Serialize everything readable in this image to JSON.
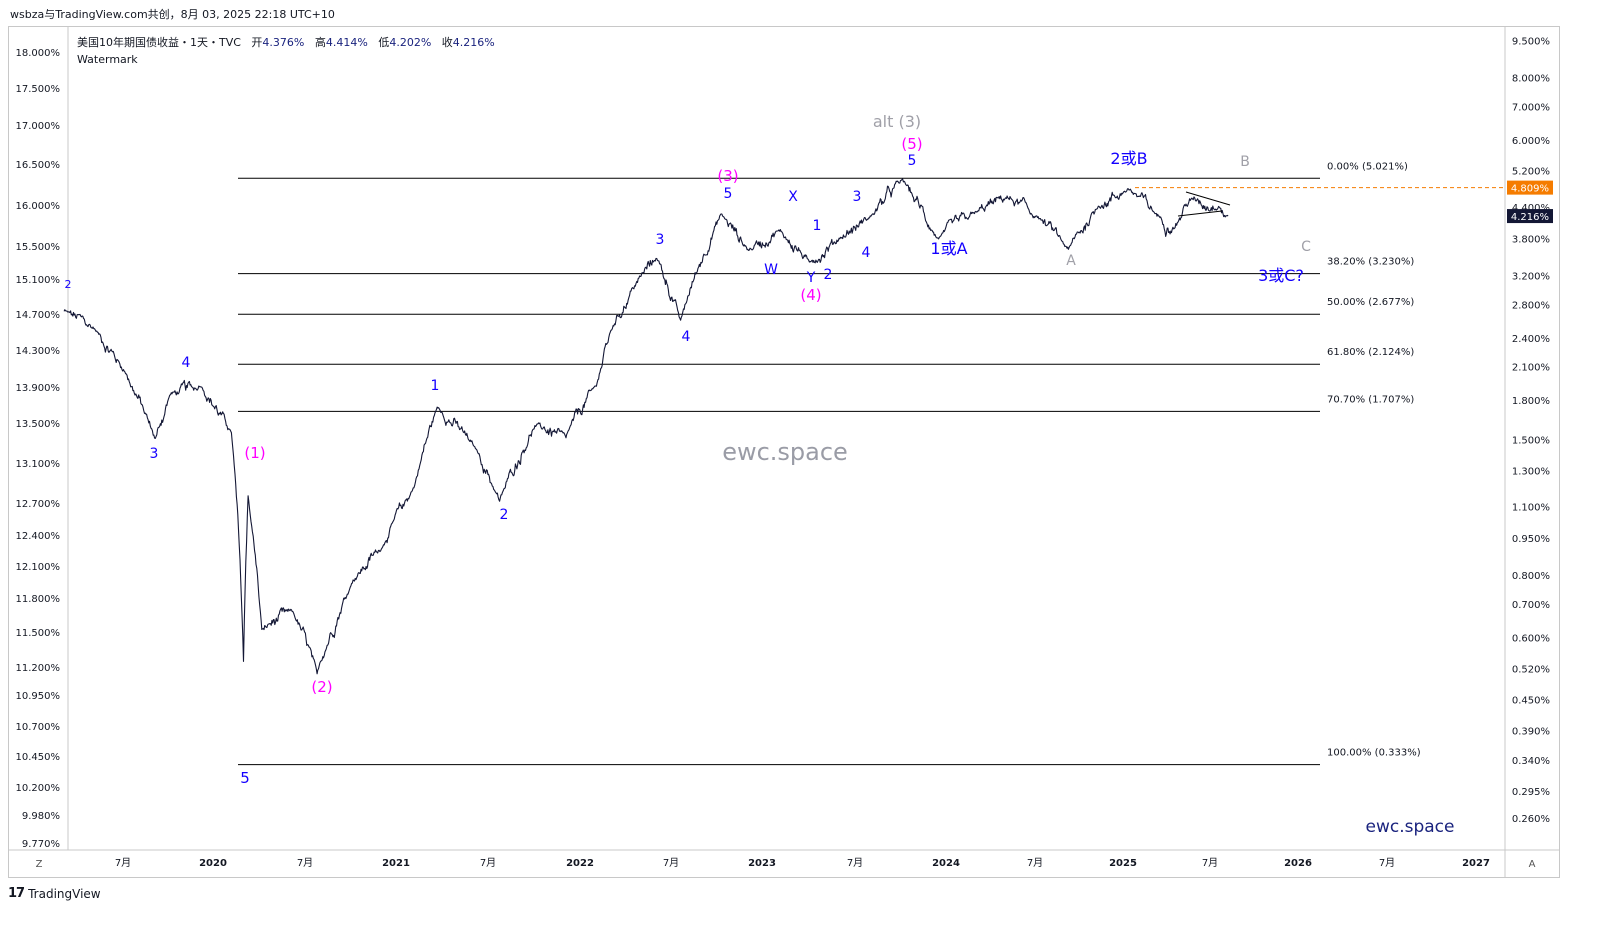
{
  "header": {
    "title": "wsbza与TradingView.com共创，8月 03, 2025 22:18 UTC+10"
  },
  "legend": {
    "symbol": "美国10年期国债收益・1天・TVC",
    "open_label": "开",
    "open": "4.376%",
    "high_label": "高",
    "high": "4.414%",
    "low_label": "低",
    "low": "4.202%",
    "close_label": "收",
    "close": "4.216%",
    "subtitle": "Watermark"
  },
  "watermark": "ewc.space",
  "brand": "ewc.space",
  "footer": {
    "logo": "17",
    "name": "TradingView"
  },
  "buttons": {
    "left": "Z",
    "right": "A"
  },
  "colors": {
    "price_line": "#131735",
    "blue_label": "#1400ff",
    "magenta_label": "#ff00ff",
    "gray_label": "#a0a0a8",
    "fib_line": "#000000",
    "last_close_bg": "#131735",
    "high_line": "#f57c00"
  },
  "chart_data": {
    "type": "line",
    "title": "美国10年期国债收益・1天・TVC",
    "left_axis": {
      "ticks": [
        "18.000%",
        "17.500%",
        "17.000%",
        "16.500%",
        "16.000%",
        "15.500%",
        "15.100%",
        "14.700%",
        "14.300%",
        "13.900%",
        "13.500%",
        "13.100%",
        "12.700%",
        "12.400%",
        "12.100%",
        "11.800%",
        "11.500%",
        "11.200%",
        "10.950%",
        "10.700%",
        "10.450%",
        "10.200%",
        "9.980%",
        "9.770%"
      ]
    },
    "right_axis": {
      "scale": "log",
      "ticks": [
        "9.500%",
        "8.000%",
        "7.000%",
        "6.000%",
        "5.200%",
        "4.400%",
        "3.800%",
        "3.200%",
        "2.800%",
        "2.400%",
        "2.100%",
        "1.800%",
        "1.500%",
        "1.300%",
        "1.100%",
        "0.950%",
        "0.800%",
        "0.700%",
        "0.600%",
        "0.520%",
        "0.450%",
        "0.390%",
        "0.340%",
        "0.295%",
        "0.260%"
      ],
      "last_value": "4.216%",
      "high_marker": "4.809%"
    },
    "x_axis": {
      "ticks": [
        "7月",
        "2020",
        "7月",
        "2021",
        "7月",
        "2022",
        "7月",
        "2023",
        "7月",
        "2024",
        "7月",
        "2025",
        "7月",
        "2026",
        "7月",
        "2027"
      ]
    },
    "series": [
      {
        "x": [
          "2019-03",
          "2019-05",
          "2019-07",
          "2019-09",
          "2019-10",
          "2019-12",
          "2020-02",
          "2020-03-09",
          "2020-03-18",
          "2020-04",
          "2020-06",
          "2020-08-04",
          "2020-10",
          "2020-12",
          "2021-02",
          "2021-03-31",
          "2021-06",
          "2021-08-04",
          "2021-10",
          "2021-12",
          "2022-02",
          "2022-03",
          "2022-05-06",
          "2022-06-14",
          "2022-08-01",
          "2022-10-21",
          "2022-12",
          "2023-02",
          "2023-04",
          "2023-06",
          "2023-08",
          "2023-10-19",
          "2023-12-27",
          "2024-03",
          "2024-05",
          "2024-07",
          "2024-09-16",
          "2024-11",
          "2025-01-14",
          "2025-03",
          "2025-04",
          "2025-05",
          "2025-07",
          "2025-08-01"
        ],
        "y": [
          2.72,
          2.5,
          2.05,
          1.5,
          1.85,
          1.92,
          1.55,
          0.54,
          1.15,
          0.62,
          0.68,
          0.51,
          0.78,
          0.92,
          1.2,
          1.74,
          1.45,
          1.13,
          1.6,
          1.52,
          1.93,
          2.5,
          3.12,
          3.48,
          2.6,
          4.25,
          3.6,
          3.95,
          3.4,
          3.8,
          4.2,
          4.99,
          3.79,
          4.3,
          4.6,
          4.2,
          3.62,
          4.4,
          4.79,
          4.2,
          4.0,
          4.55,
          4.4,
          4.216
        ]
      }
    ],
    "fib_levels": [
      {
        "label": "0.00% (5.021%)",
        "value": 5.021
      },
      {
        "label": "38.20% (3.230%)",
        "value": 3.23
      },
      {
        "label": "50.00% (2.677%)",
        "value": 2.677
      },
      {
        "label": "61.80% (2.124%)",
        "value": 2.124
      },
      {
        "label": "70.70% (1.707%)",
        "value": 1.707
      },
      {
        "label": "100.00% (0.333%)",
        "value": 0.333
      }
    ],
    "wave_labels": [
      {
        "text": "2",
        "color": "blue"
      },
      {
        "text": "3",
        "color": "blue"
      },
      {
        "text": "4",
        "color": "blue"
      },
      {
        "text": "(1)",
        "color": "magenta"
      },
      {
        "text": "5",
        "color": "blue"
      },
      {
        "text": "(2)",
        "color": "magenta"
      },
      {
        "text": "1",
        "color": "blue"
      },
      {
        "text": "2",
        "color": "blue"
      },
      {
        "text": "3",
        "color": "blue"
      },
      {
        "text": "4",
        "color": "blue"
      },
      {
        "text": "(3)",
        "color": "magenta"
      },
      {
        "text": "5",
        "color": "blue"
      },
      {
        "text": "W",
        "color": "blue"
      },
      {
        "text": "X",
        "color": "blue"
      },
      {
        "text": "Y",
        "color": "blue"
      },
      {
        "text": "(4)",
        "color": "magenta"
      },
      {
        "text": "1",
        "color": "blue"
      },
      {
        "text": "2",
        "color": "blue"
      },
      {
        "text": "3",
        "color": "blue"
      },
      {
        "text": "4",
        "color": "blue"
      },
      {
        "text": "alt (3)",
        "color": "gray"
      },
      {
        "text": "(5)",
        "color": "magenta"
      },
      {
        "text": "5",
        "color": "blue"
      },
      {
        "text": "1或A",
        "color": "blue"
      },
      {
        "text": "A",
        "color": "gray"
      },
      {
        "text": "2或B",
        "color": "blue"
      },
      {
        "text": "B",
        "color": "gray"
      },
      {
        "text": "C",
        "color": "gray"
      },
      {
        "text": "3或C?",
        "color": "blue"
      }
    ]
  }
}
